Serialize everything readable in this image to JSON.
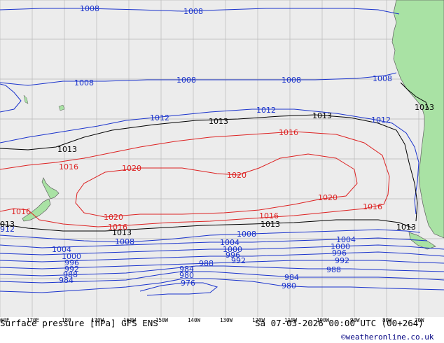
{
  "map": {
    "colors": {
      "ocean": "#ececec",
      "land": "#a9e2a4",
      "grid": "#b9b9b9",
      "low": "#1a33cc",
      "normal": "#000000",
      "high": "#dd2222",
      "coast": "#606060"
    },
    "isobar_labels": [
      {
        "id": "l1008a",
        "text": "1008",
        "cls": "low"
      },
      {
        "id": "l1008b",
        "text": "1008",
        "cls": "low"
      },
      {
        "id": "l1008c",
        "text": "1008",
        "cls": "low"
      },
      {
        "id": "l1008d",
        "text": "1008",
        "cls": "low"
      },
      {
        "id": "l1008e",
        "text": "1008",
        "cls": "low"
      },
      {
        "id": "l1008f",
        "text": "1008",
        "cls": "low"
      },
      {
        "id": "l1012a",
        "text": "1012",
        "cls": "low"
      },
      {
        "id": "l1012b",
        "text": "1012",
        "cls": "low"
      },
      {
        "id": "l1012c",
        "text": "1012",
        "cls": "low"
      },
      {
        "id": "l1013a",
        "text": "1013",
        "cls": "normal"
      },
      {
        "id": "l1013b",
        "text": "1013",
        "cls": "normal"
      },
      {
        "id": "l1013c",
        "text": "1013",
        "cls": "normal"
      },
      {
        "id": "l1013d",
        "text": "1013",
        "cls": "normal"
      },
      {
        "id": "l1013e",
        "text": "1013",
        "cls": "normal"
      },
      {
        "id": "l1013f",
        "text": "1013",
        "cls": "normal"
      },
      {
        "id": "l1013g",
        "text": "1013",
        "cls": "normal"
      },
      {
        "id": "l1016a",
        "text": "1016",
        "cls": "high"
      },
      {
        "id": "l1016b",
        "text": "1016",
        "cls": "high"
      },
      {
        "id": "l1016c",
        "text": "1016",
        "cls": "high"
      },
      {
        "id": "l1016d",
        "text": "1016",
        "cls": "high"
      },
      {
        "id": "l1016e",
        "text": "1016",
        "cls": "high"
      },
      {
        "id": "l1016f",
        "text": "1016",
        "cls": "high"
      },
      {
        "id": "l1020a",
        "text": "1020",
        "cls": "high"
      },
      {
        "id": "l1020b",
        "text": "1020",
        "cls": "high"
      },
      {
        "id": "l1020c",
        "text": "1020",
        "cls": "high"
      },
      {
        "id": "l1020d",
        "text": "1020",
        "cls": "high"
      },
      {
        "id": "l1008g",
        "text": "1008",
        "cls": "low"
      },
      {
        "id": "l1008h",
        "text": "1008",
        "cls": "low"
      },
      {
        "id": "l1004a",
        "text": "1004",
        "cls": "low"
      },
      {
        "id": "l1004b",
        "text": "1004",
        "cls": "low"
      },
      {
        "id": "l1004c",
        "text": "1004",
        "cls": "low"
      },
      {
        "id": "l1000a",
        "text": "1000",
        "cls": "low"
      },
      {
        "id": "l1000b",
        "text": "1000",
        "cls": "low"
      },
      {
        "id": "l1000c",
        "text": "1000",
        "cls": "low"
      },
      {
        "id": "l996a",
        "text": "996",
        "cls": "low"
      },
      {
        "id": "l996b",
        "text": "996",
        "cls": "low"
      },
      {
        "id": "l996c",
        "text": "996",
        "cls": "low"
      },
      {
        "id": "l992a",
        "text": "992",
        "cls": "low"
      },
      {
        "id": "l992b",
        "text": "992",
        "cls": "low"
      },
      {
        "id": "l992c",
        "text": "992",
        "cls": "low"
      },
      {
        "id": "l988a",
        "text": "988",
        "cls": "low"
      },
      {
        "id": "l988b",
        "text": "988",
        "cls": "low"
      },
      {
        "id": "l988c",
        "text": "988",
        "cls": "low"
      },
      {
        "id": "l984a",
        "text": "984",
        "cls": "low"
      },
      {
        "id": "l984b",
        "text": "984",
        "cls": "low"
      },
      {
        "id": "l984c",
        "text": "984",
        "cls": "low"
      },
      {
        "id": "l980a",
        "text": "980",
        "cls": "low"
      },
      {
        "id": "l980b",
        "text": "980",
        "cls": "low"
      },
      {
        "id": "l976a",
        "text": "976",
        "cls": "low"
      },
      {
        "id": "l912",
        "text": "912",
        "cls": "low"
      },
      {
        "id": "l013left",
        "text": "013",
        "cls": "normal"
      }
    ]
  },
  "footer": {
    "lon_ticks": [
      "60E",
      "170E",
      "180",
      "170W",
      "160W",
      "150W",
      "140W",
      "130W",
      "120W",
      "110W",
      "100W",
      "90W",
      "80W",
      "70W"
    ],
    "title": "Surface pressure [hPa] GFS ENS",
    "valid": "Sa 07-03-2026 00:00 UTC (00+264)",
    "credit": "©weatheronline.co.uk"
  }
}
